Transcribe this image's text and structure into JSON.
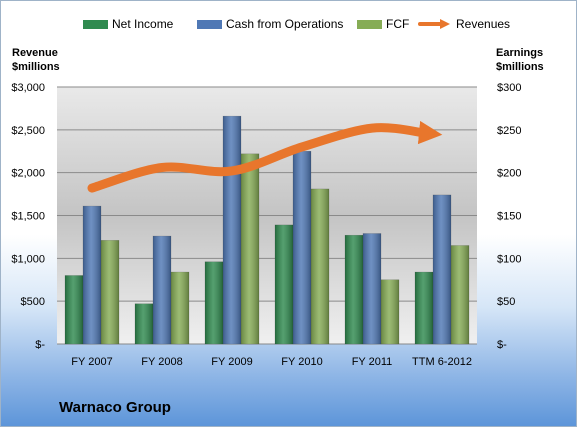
{
  "chart_data": {
    "type": "bar",
    "title": "Warnaco Group",
    "categories": [
      "FY 2007",
      "FY 2008",
      "FY 2009",
      "FY 2010",
      "FY 2011",
      "TTM 6-2012"
    ],
    "left_axis": {
      "label_line1": "Revenue",
      "label_line2": "$millions",
      "range": [
        0,
        3000
      ],
      "ticks": [
        "$-",
        "$500",
        "$1,000",
        "$1,500",
        "$2,000",
        "$2,500",
        "$3,000"
      ]
    },
    "right_axis": {
      "label_line1": "Earnings",
      "label_line2": "$millions",
      "range": [
        0,
        300
      ],
      "ticks": [
        "$-",
        "$50",
        "$100",
        "$150",
        "$200",
        "$250",
        "$300"
      ]
    },
    "series": [
      {
        "name": "Net Income",
        "axis": "right",
        "kind": "bar",
        "color": "#2f8a4f",
        "values": [
          80,
          47,
          96,
          139,
          127,
          84
        ]
      },
      {
        "name": "Cash from Operations",
        "axis": "right",
        "kind": "bar",
        "color": "#4f78b5",
        "values": [
          161,
          126,
          266,
          225,
          129,
          174
        ]
      },
      {
        "name": "FCF",
        "axis": "right",
        "kind": "bar",
        "color": "#86ac55",
        "values": [
          121,
          84,
          222,
          181,
          75,
          115
        ]
      },
      {
        "name": "Revenues",
        "axis": "left",
        "kind": "line",
        "color": "#e8762c",
        "values": [
          1820,
          2060,
          2020,
          2300,
          2520,
          2450
        ]
      }
    ],
    "grid": true,
    "legend_position": "top"
  }
}
